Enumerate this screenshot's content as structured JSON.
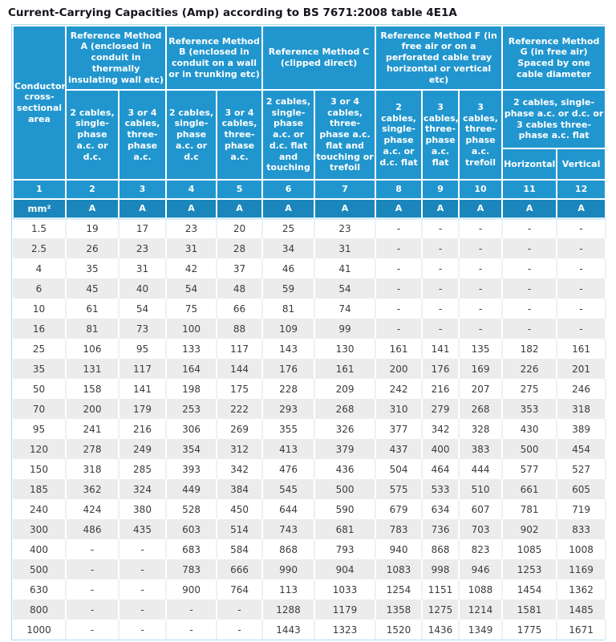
{
  "title": "Current-Carrying Capacities (Amp) according to BS 7671:2008 table 4E1A",
  "colors": {
    "header_blue": "#2196ce",
    "units_row_blue": "#1b86bc",
    "stripe_gray": "#ececec",
    "header_text": "#ffffff",
    "data_text": "#3b3b3b",
    "outer_border": "#aed9ee"
  },
  "table": {
    "corner_header": "Conductor cross- sectional area",
    "method_groups": [
      {
        "label": "Reference Method A (enclosed in conduit in thermally insulating wall etc)",
        "span": "2"
      },
      {
        "label": "Reference Method B (enclosed in conduit on a wall or in trunking etc)",
        "span": "2"
      },
      {
        "label": "Reference Method C (clipped direct)",
        "span": "2"
      },
      {
        "label": "Reference Method F (in free air or on a perforated cable tray horizontal or vertical etc)",
        "span": "3"
      },
      {
        "label": "Reference Method G (in free air) Spaced by one cable diameter",
        "span": "2"
      }
    ],
    "sub_headers": [
      "2 cables, single-phase a.c. or d.c.",
      "3 or 4 cables, three-phase a.c.",
      "2 cables, single-phase a.c. or d.c",
      "3 or 4 cables, three-phase a.c.",
      "2 cables, single-phase a.c. or d.c. flat and touching",
      "3 or 4 cables, three-phase a.c. flat and touching or trefoil",
      "2 cables, single-phase a.c. or d.c. flat",
      "3 cables, three-phase a.c. flat",
      "3 cables, three-phase a.c. trefoil"
    ],
    "g_shared_header": "2 cables, single-phase a.c. or d.c. or 3 cables three-phase a.c. flat",
    "g_split": [
      "Horizontal",
      "Vertical"
    ],
    "column_numbers": [
      "1",
      "2",
      "3",
      "4",
      "5",
      "6",
      "7",
      "8",
      "9",
      "10",
      "11",
      "12"
    ],
    "units": [
      "mm²",
      "A",
      "A",
      "A",
      "A",
      "A",
      "A",
      "A",
      "A",
      "A",
      "A",
      "A"
    ],
    "rows": [
      {
        "area": "1.5",
        "values": [
          "19",
          "17",
          "23",
          "20",
          "25",
          "23",
          "-",
          "-",
          "-",
          "-",
          "-"
        ]
      },
      {
        "area": "2.5",
        "values": [
          "26",
          "23",
          "31",
          "28",
          "34",
          "31",
          "-",
          "-",
          "-",
          "-",
          "-"
        ]
      },
      {
        "area": "4",
        "values": [
          "35",
          "31",
          "42",
          "37",
          "46",
          "41",
          "-",
          "-",
          "-",
          "-",
          "-"
        ]
      },
      {
        "area": "6",
        "values": [
          "45",
          "40",
          "54",
          "48",
          "59",
          "54",
          "-",
          "-",
          "-",
          "-",
          "-"
        ]
      },
      {
        "area": "10",
        "values": [
          "61",
          "54",
          "75",
          "66",
          "81",
          "74",
          "-",
          "-",
          "-",
          "-",
          "-"
        ]
      },
      {
        "area": "16",
        "values": [
          "81",
          "73",
          "100",
          "88",
          "109",
          "99",
          "-",
          "-",
          "-",
          "-",
          "-"
        ]
      },
      {
        "area": "25",
        "values": [
          "106",
          "95",
          "133",
          "117",
          "143",
          "130",
          "161",
          "141",
          "135",
          "182",
          "161"
        ]
      },
      {
        "area": "35",
        "values": [
          "131",
          "117",
          "164",
          "144",
          "176",
          "161",
          "200",
          "176",
          "169",
          "226",
          "201"
        ]
      },
      {
        "area": "50",
        "values": [
          "158",
          "141",
          "198",
          "175",
          "228",
          "209",
          "242",
          "216",
          "207",
          "275",
          "246"
        ]
      },
      {
        "area": "70",
        "values": [
          "200",
          "179",
          "253",
          "222",
          "293",
          "268",
          "310",
          "279",
          "268",
          "353",
          "318"
        ]
      },
      {
        "area": "95",
        "values": [
          "241",
          "216",
          "306",
          "269",
          "355",
          "326",
          "377",
          "342",
          "328",
          "430",
          "389"
        ]
      },
      {
        "area": "120",
        "values": [
          "278",
          "249",
          "354",
          "312",
          "413",
          "379",
          "437",
          "400",
          "383",
          "500",
          "454"
        ]
      },
      {
        "area": "150",
        "values": [
          "318",
          "285",
          "393",
          "342",
          "476",
          "436",
          "504",
          "464",
          "444",
          "577",
          "527"
        ]
      },
      {
        "area": "185",
        "values": [
          "362",
          "324",
          "449",
          "384",
          "545",
          "500",
          "575",
          "533",
          "510",
          "661",
          "605"
        ]
      },
      {
        "area": "240",
        "values": [
          "424",
          "380",
          "528",
          "450",
          "644",
          "590",
          "679",
          "634",
          "607",
          "781",
          "719"
        ]
      },
      {
        "area": "300",
        "values": [
          "486",
          "435",
          "603",
          "514",
          "743",
          "681",
          "783",
          "736",
          "703",
          "902",
          "833"
        ]
      },
      {
        "area": "400",
        "values": [
          "-",
          "-",
          "683",
          "584",
          "868",
          "793",
          "940",
          "868",
          "823",
          "1085",
          "1008"
        ]
      },
      {
        "area": "500",
        "values": [
          "-",
          "-",
          "783",
          "666",
          "990",
          "904",
          "1083",
          "998",
          "946",
          "1253",
          "1169"
        ]
      },
      {
        "area": "630",
        "values": [
          "-",
          "-",
          "900",
          "764",
          "113",
          "1033",
          "1254",
          "1151",
          "1088",
          "1454",
          "1362"
        ]
      },
      {
        "area": "800",
        "values": [
          "-",
          "-",
          "-",
          "-",
          "1288",
          "1179",
          "1358",
          "1275",
          "1214",
          "1581",
          "1485"
        ]
      },
      {
        "area": "1000",
        "values": [
          "-",
          "-",
          "-",
          "-",
          "1443",
          "1323",
          "1520",
          "1436",
          "1349",
          "1775",
          "1671"
        ]
      }
    ]
  }
}
